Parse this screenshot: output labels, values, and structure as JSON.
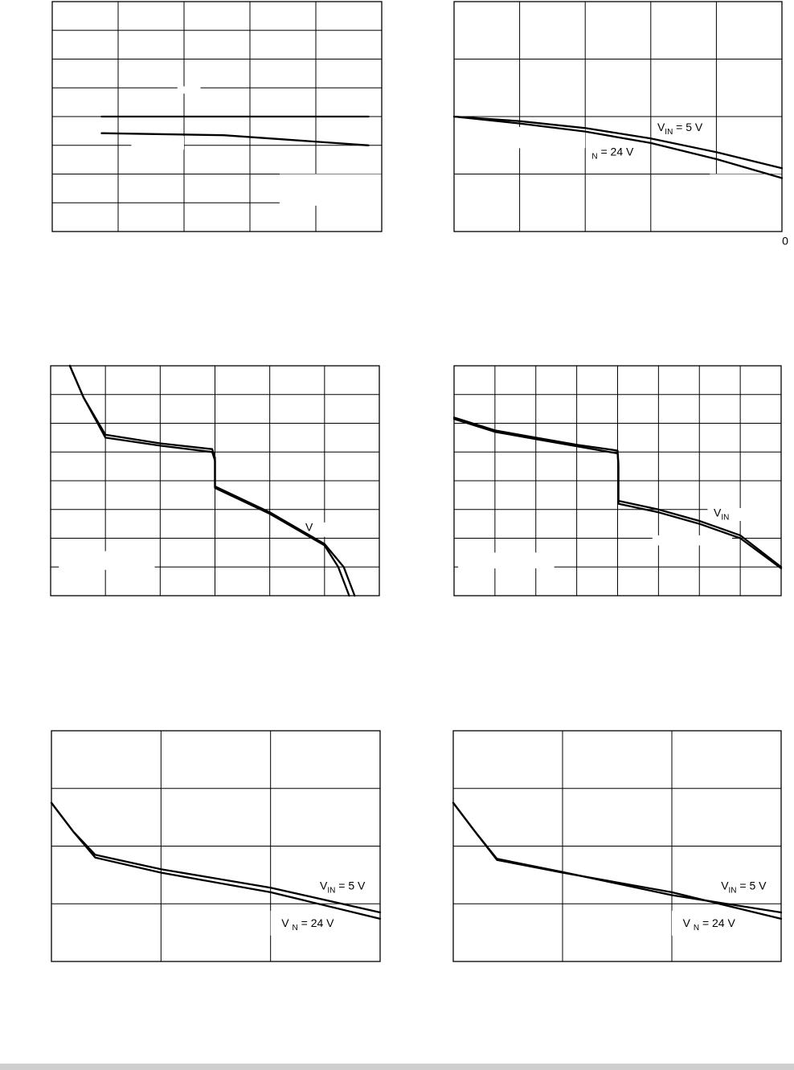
{
  "chart_data": [
    {
      "type": "line",
      "title": "",
      "xlabel": "",
      "ylabel": "",
      "x_ticks": [],
      "y_ticks": [],
      "xlim": [
        0,
        5
      ],
      "ylim": [
        0,
        8
      ],
      "grid": true,
      "series": [
        {
          "values_xy": [
            [
              0.75,
              4.0
            ],
            [
              4.8,
              4.0
            ]
          ]
        },
        {
          "values_xy": [
            [
              0.75,
              3.42
            ],
            [
              2.6,
              3.35
            ],
            [
              4.8,
              3.0
            ]
          ]
        }
      ],
      "annotations": [],
      "masked_cells": [
        {
          "x": [
            1.2,
            2.0
          ],
          "y": [
            2.85,
            3.32
          ]
        },
        {
          "x": [
            3.45,
            5.0
          ],
          "y": [
            0.9,
            2.0
          ]
        },
        {
          "x": [
            1.9,
            2.25
          ],
          "y": [
            4.8,
            5.05
          ]
        }
      ]
    },
    {
      "type": "line",
      "title": "",
      "xlabel": "",
      "ylabel": "",
      "x_ticks": [],
      "y_ticks": [],
      "xlim": [
        0,
        5
      ],
      "ylim": [
        0,
        4
      ],
      "grid": true,
      "series": [
        {
          "name": "VIN = 5 V",
          "values_xy": [
            [
              0,
              2.0
            ],
            [
              1,
              1.92
            ],
            [
              2,
              1.8
            ],
            [
              3,
              1.62
            ],
            [
              4,
              1.38
            ],
            [
              5,
              1.1
            ]
          ]
        },
        {
          "name": "VIN = 24 V",
          "values_xy": [
            [
              0,
              2.0
            ],
            [
              1,
              1.88
            ],
            [
              2,
              1.74
            ],
            [
              3,
              1.54
            ],
            [
              4,
              1.26
            ],
            [
              5,
              0.93
            ]
          ]
        }
      ],
      "annotations": [
        {
          "main": "V",
          "sub": "IN",
          "rest": " = 5 V",
          "x": 3.1,
          "y": 1.75
        },
        {
          "main": "",
          "sub": "N",
          "rest": " = 24 V",
          "x": 2.1,
          "y": 1.32
        }
      ],
      "masked_cells": [
        {
          "x": [
            0.45,
            2.0
          ],
          "y": [
            1.45,
            1.82
          ]
        },
        {
          "x": [
            3.9,
            5.0
          ],
          "y": [
            0,
            1.0
          ]
        }
      ],
      "outside_labels": [
        {
          "text": "0",
          "x": 5.05,
          "y": -0.2
        }
      ]
    },
    {
      "type": "line",
      "title": "",
      "xlabel": "",
      "ylabel": "",
      "x_ticks": [],
      "y_ticks": [],
      "xlim": [
        0,
        6
      ],
      "ylim": [
        0,
        8
      ],
      "grid": true,
      "series": [
        {
          "values_xy": [
            [
              0.35,
              8.0
            ],
            [
              0.6,
              6.9
            ],
            [
              1.0,
              5.6
            ],
            [
              2.0,
              5.3
            ],
            [
              2.95,
              5.1
            ],
            [
              3.0,
              4.8
            ],
            [
              3.0,
              3.8
            ],
            [
              4.0,
              2.9
            ],
            [
              5.0,
              1.8
            ],
            [
              5.35,
              1.0
            ],
            [
              5.55,
              0.0
            ]
          ]
        },
        {
          "values_xy": [
            [
              0.35,
              8.0
            ],
            [
              0.6,
              6.9
            ],
            [
              1.0,
              5.5
            ],
            [
              2.0,
              5.22
            ],
            [
              2.95,
              5.0
            ],
            [
              3.0,
              4.7
            ],
            [
              3.0,
              3.75
            ],
            [
              4.0,
              2.85
            ],
            [
              5.0,
              1.75
            ],
            [
              5.25,
              1.0
            ],
            [
              5.45,
              0.0
            ]
          ]
        }
      ],
      "annotations": [
        {
          "main": "V",
          "sub": "",
          "rest": "",
          "x": 4.65,
          "y": 2.25
        }
      ],
      "masked_cells": [
        {
          "x": [
            0.15,
            1.9
          ],
          "y": [
            0.9,
            1.55
          ]
        },
        {
          "x": [
            4.85,
            6.0
          ],
          "y": [
            2.05,
            2.55
          ]
        }
      ]
    },
    {
      "type": "line",
      "title": "",
      "xlabel": "",
      "ylabel": "",
      "x_ticks": [],
      "y_ticks": [],
      "xlim": [
        0,
        8
      ],
      "ylim": [
        0,
        8
      ],
      "grid": true,
      "series": [
        {
          "values_xy": [
            [
              0,
              6.2
            ],
            [
              1,
              5.75
            ],
            [
              2,
              5.5
            ],
            [
              3,
              5.25
            ],
            [
              4,
              5.05
            ],
            [
              4.02,
              4.6
            ],
            [
              4.02,
              3.3
            ],
            [
              5,
              3.0
            ],
            [
              6,
              2.6
            ],
            [
              7,
              2.1
            ],
            [
              8,
              1.0
            ]
          ]
        },
        {
          "values_xy": [
            [
              0,
              6.15
            ],
            [
              1,
              5.7
            ],
            [
              2,
              5.45
            ],
            [
              3,
              5.2
            ],
            [
              4,
              4.95
            ],
            [
              4.02,
              4.5
            ],
            [
              4.02,
              3.2
            ],
            [
              5,
              2.9
            ],
            [
              6,
              2.5
            ],
            [
              7,
              2.0
            ],
            [
              8,
              0.95
            ]
          ]
        }
      ],
      "annotations": [
        {
          "main": "V",
          "sub": "IN",
          "rest": "",
          "x": 6.35,
          "y": 2.75
        }
      ],
      "masked_cells": [
        {
          "x": [
            0.1,
            2.45
          ],
          "y": [
            0.95,
            1.5
          ]
        },
        {
          "x": [
            6.2,
            8.0
          ],
          "y": [
            2.6,
            3.05
          ]
        },
        {
          "x": [
            4.85,
            6.8
          ],
          "y": [
            1.75,
            2.1
          ]
        }
      ]
    },
    {
      "type": "line",
      "title": "",
      "xlabel": "",
      "ylabel": "",
      "x_ticks": [],
      "y_ticks": [],
      "xlim": [
        0,
        3
      ],
      "ylim": [
        0,
        4
      ],
      "grid": true,
      "series": [
        {
          "name": "VIN = 5 V",
          "values_xy": [
            [
              0,
              2.75
            ],
            [
              0.2,
              2.25
            ],
            [
              0.4,
              1.85
            ],
            [
              1.0,
              1.6
            ],
            [
              2.0,
              1.28
            ],
            [
              3.0,
              0.85
            ]
          ]
        },
        {
          "name": "VIN = 24 V",
          "values_xy": [
            [
              0,
              2.75
            ],
            [
              0.2,
              2.25
            ],
            [
              0.4,
              1.8
            ],
            [
              1.0,
              1.54
            ],
            [
              2.0,
              1.2
            ],
            [
              3.0,
              0.74
            ]
          ]
        }
      ],
      "annotations": [
        {
          "main": "V",
          "sub": "IN",
          "rest": " = 5 V",
          "x": 2.45,
          "y": 1.25
        },
        {
          "main": "V ",
          "sub": "N",
          "rest": " = 24 V",
          "x": 2.1,
          "y": 0.6
        }
      ],
      "masked_cells": [
        {
          "x": [
            2.25,
            3.0
          ],
          "y": [
            1.05,
            1.45
          ]
        },
        {
          "x": [
            2.0,
            2.85
          ],
          "y": [
            0.45,
            0.88
          ]
        }
      ]
    },
    {
      "type": "line",
      "title": "",
      "xlabel": "",
      "ylabel": "",
      "x_ticks": [],
      "y_ticks": [],
      "xlim": [
        0,
        3
      ],
      "ylim": [
        0,
        4
      ],
      "grid": true,
      "series": [
        {
          "name": "VIN = 5 V",
          "values_xy": [
            [
              0,
              2.75
            ],
            [
              0.2,
              2.25
            ],
            [
              0.4,
              1.78
            ],
            [
              1.0,
              1.55
            ],
            [
              2.0,
              1.15
            ],
            [
              3.0,
              0.85
            ]
          ]
        },
        {
          "name": "VIN = 24 V",
          "values_xy": [
            [
              0,
              2.75
            ],
            [
              0.2,
              2.25
            ],
            [
              0.4,
              1.76
            ],
            [
              1.0,
              1.54
            ],
            [
              2.0,
              1.2
            ],
            [
              3.0,
              0.74
            ]
          ]
        }
      ],
      "annotations": [
        {
          "main": "V",
          "sub": "IN",
          "rest": " = 5 V",
          "x": 2.45,
          "y": 1.25
        },
        {
          "main": "V ",
          "sub": "N",
          "rest": " = 24 V",
          "x": 2.1,
          "y": 0.6
        }
      ],
      "masked_cells": [
        {
          "x": [
            2.25,
            3.0
          ],
          "y": [
            1.05,
            1.45
          ]
        },
        {
          "x": [
            2.0,
            2.85
          ],
          "y": [
            0.45,
            0.88
          ]
        }
      ]
    }
  ]
}
